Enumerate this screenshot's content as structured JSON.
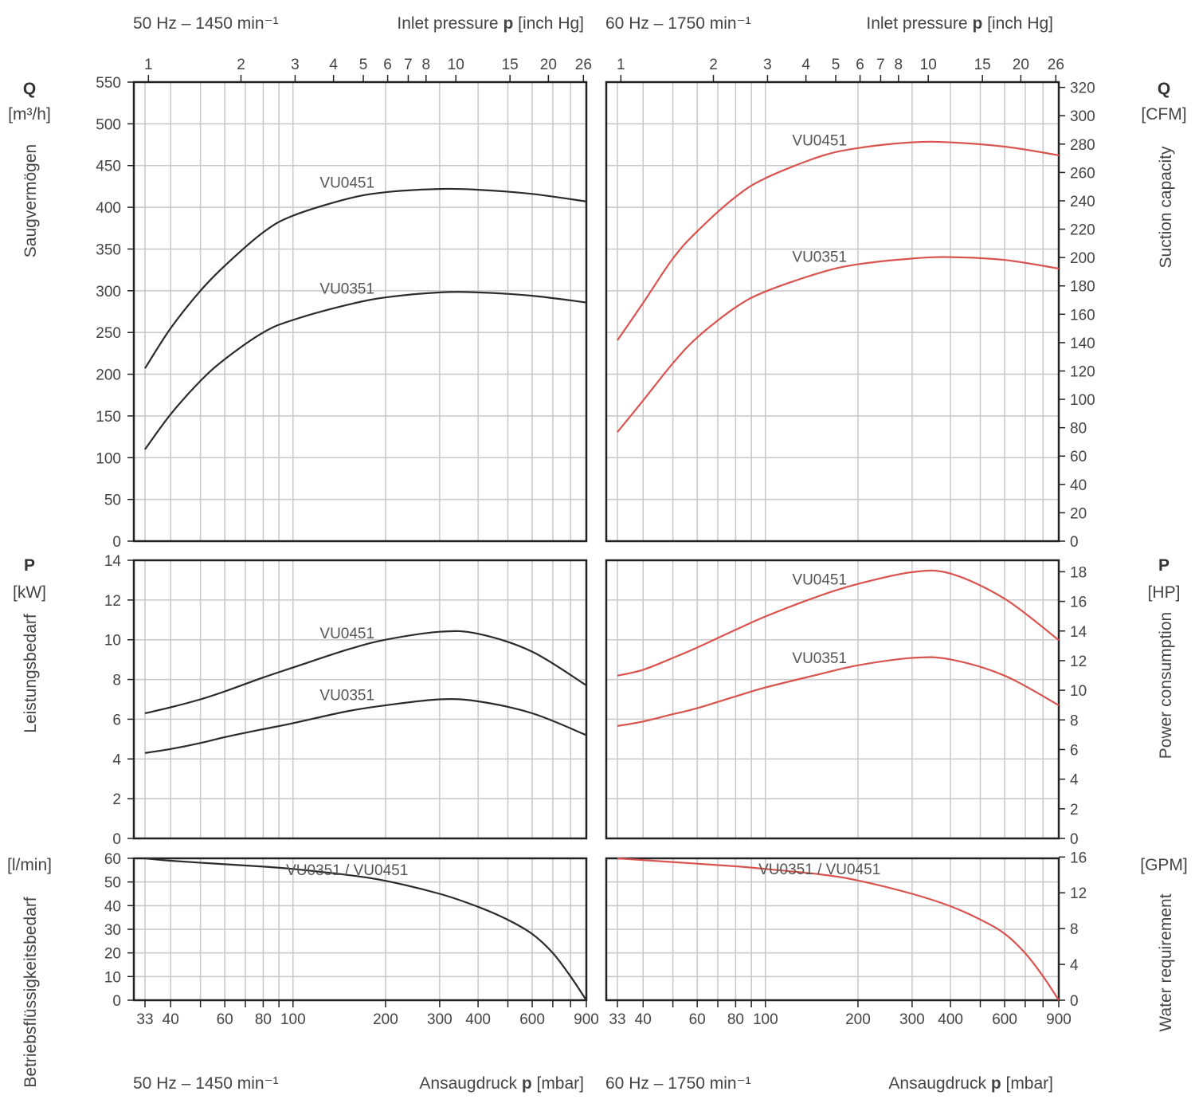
{
  "headers": {
    "top_left_speed": "50 Hz – 1450 min⁻¹",
    "top_left_axis": "Inlet pressure",
    "top_right_speed": "60 Hz – 1750 min⁻¹",
    "top_right_axis": "Inlet pressure",
    "pressure_symbol": "p",
    "inlet_unit": "[inch Hg]",
    "bottom_left_speed": "50 Hz – 1450 min⁻¹",
    "bottom_left_axis": "Ansaugdruck",
    "bottom_right_speed": "60 Hz – 1750 min⁻¹",
    "bottom_right_axis": "Ansaugdruck",
    "mbar_unit": "[mbar]"
  },
  "side_labels": {
    "q_symbol": "Q",
    "q_unit_left": "[m³/h]",
    "q_label_left": "Saugvermögen",
    "q_unit_right": "[CFM]",
    "q_label_right": "Suction capacity",
    "p_symbol": "P",
    "p_unit_left": "[kW]",
    "p_label_left": "Leistungsbedarf",
    "p_unit_right": "[HP]",
    "p_label_right": "Power consumption",
    "w_unit_left": "[l/min]",
    "w_label_left": "Betriebsflüssigkeitsbedarf",
    "w_unit_right": "[GPM]",
    "w_label_right": "Water requirement"
  },
  "colors": {
    "hz50": "#2b2b2b",
    "hz60": "#d9534f"
  },
  "axes": {
    "mbar_ticks": [
      33,
      40,
      60,
      80,
      100,
      200,
      300,
      400,
      600,
      900
    ],
    "mbar_minor": [
      50,
      70,
      90,
      500,
      700,
      800
    ],
    "inchhg_ticks": [
      1,
      2,
      3,
      4,
      5,
      6,
      7,
      8,
      10,
      15,
      20,
      26
    ],
    "mbar_range": [
      33,
      900
    ],
    "q_left_ticks": [
      0,
      50,
      100,
      150,
      200,
      250,
      300,
      350,
      400,
      450,
      500,
      550
    ],
    "q_left_range": [
      0,
      550
    ],
    "q_right_ticks": [
      0,
      20,
      40,
      60,
      80,
      100,
      120,
      140,
      160,
      180,
      200,
      220,
      240,
      260,
      280,
      300,
      320
    ],
    "p_left_ticks": [
      0,
      2,
      4,
      6,
      8,
      10,
      12,
      14
    ],
    "p_left_range": [
      0,
      14
    ],
    "p_right_ticks": [
      0,
      2,
      4,
      6,
      8,
      10,
      12,
      14,
      16,
      18
    ],
    "w_left_ticks": [
      0,
      10,
      20,
      30,
      40,
      50,
      60
    ],
    "w_left_range": [
      0,
      60
    ],
    "w_right_ticks": [
      0,
      4,
      8,
      12,
      16
    ]
  },
  "chart_data": [
    {
      "type": "line",
      "title": "50 Hz – 1450 min⁻¹",
      "xlabel": "Ansaugdruck p [mbar]",
      "ylabel": "Saugvermögen Q [m³/h]",
      "xscale": "log",
      "xlim": [
        33,
        900
      ],
      "ylim": [
        0,
        550
      ],
      "series": [
        {
          "name": "VU0451",
          "x": [
            33,
            40,
            50,
            60,
            80,
            100,
            150,
            200,
            300,
            400,
            600,
            900
          ],
          "y": [
            207,
            255,
            300,
            330,
            370,
            390,
            410,
            418,
            422,
            421,
            416,
            407
          ]
        },
        {
          "name": "VU0351",
          "x": [
            33,
            40,
            50,
            60,
            80,
            100,
            150,
            200,
            300,
            400,
            600,
            900
          ],
          "y": [
            110,
            152,
            192,
            218,
            250,
            265,
            283,
            292,
            298,
            298,
            294,
            286
          ]
        }
      ]
    },
    {
      "type": "line",
      "title": "60 Hz – 1750 min⁻¹",
      "xlabel": "Ansaugdruck p [mbar]",
      "ylabel": "Suction capacity Q [CFM]",
      "xscale": "log",
      "xlim": [
        33,
        900
      ],
      "ylim": [
        0,
        320
      ],
      "series": [
        {
          "name": "VU0451",
          "x": [
            33,
            40,
            50,
            60,
            80,
            100,
            150,
            200,
            300,
            400,
            600,
            900
          ],
          "y": [
            140,
            166,
            197,
            216,
            240,
            253,
            268,
            274,
            278,
            278,
            275,
            269
          ]
        },
        {
          "name": "VU0351",
          "x": [
            33,
            40,
            50,
            60,
            80,
            100,
            150,
            200,
            300,
            400,
            600,
            900
          ],
          "y": [
            76,
            98,
            124,
            142,
            163,
            174,
            187,
            193,
            197,
            198,
            196,
            190
          ]
        }
      ]
    },
    {
      "type": "line",
      "title": "50 Hz – 1450 min⁻¹",
      "ylabel": "Leistungsbedarf P [kW]",
      "xscale": "log",
      "xlim": [
        33,
        900
      ],
      "ylim": [
        0,
        14
      ],
      "series": [
        {
          "name": "VU0451",
          "x": [
            33,
            40,
            50,
            60,
            80,
            100,
            150,
            200,
            300,
            400,
            600,
            900
          ],
          "y": [
            6.3,
            6.6,
            7.0,
            7.4,
            8.1,
            8.6,
            9.5,
            10.0,
            10.4,
            10.3,
            9.4,
            7.7
          ]
        },
        {
          "name": "VU0351",
          "x": [
            33,
            40,
            50,
            60,
            80,
            100,
            150,
            200,
            300,
            400,
            600,
            900
          ],
          "y": [
            4.3,
            4.5,
            4.8,
            5.1,
            5.5,
            5.8,
            6.4,
            6.7,
            7.0,
            6.9,
            6.3,
            5.2
          ]
        }
      ]
    },
    {
      "type": "line",
      "title": "60 Hz – 1750 min⁻¹",
      "ylabel": "Power consumption P [HP]",
      "xscale": "log",
      "xlim": [
        33,
        900
      ],
      "ylim": [
        0,
        18.8
      ],
      "series": [
        {
          "name": "VU0451",
          "x": [
            33,
            40,
            50,
            60,
            80,
            100,
            150,
            200,
            300,
            400,
            600,
            900
          ],
          "y": [
            11.0,
            11.4,
            12.2,
            12.9,
            14.1,
            15.0,
            16.4,
            17.2,
            18.0,
            17.9,
            16.2,
            13.4
          ]
        },
        {
          "name": "VU0351",
          "x": [
            33,
            40,
            50,
            60,
            80,
            100,
            150,
            200,
            300,
            400,
            600,
            900
          ],
          "y": [
            7.6,
            7.9,
            8.4,
            8.8,
            9.6,
            10.2,
            11.1,
            11.7,
            12.2,
            12.1,
            11.0,
            9.0
          ]
        }
      ]
    },
    {
      "type": "line",
      "title": "50 Hz – 1450 min⁻¹",
      "ylabel": "Betriebsflüssigkeitsbedarf [l/min]",
      "xlabel": "Ansaugdruck p [mbar]",
      "xscale": "log",
      "xlim": [
        33,
        900
      ],
      "ylim": [
        0,
        60
      ],
      "series": [
        {
          "name": "VU0351 / VU0451",
          "x": [
            33,
            40,
            60,
            80,
            100,
            150,
            200,
            300,
            400,
            500,
            600,
            700,
            800,
            900
          ],
          "y": [
            60,
            59,
            57.5,
            56.5,
            55.5,
            53,
            50.5,
            45,
            39.5,
            34,
            28,
            20,
            10,
            0
          ]
        }
      ]
    },
    {
      "type": "line",
      "title": "60 Hz – 1750 min⁻¹",
      "ylabel": "Water requirement [GPM]",
      "xlabel": "Ansaugdruck p [mbar]",
      "xscale": "log",
      "xlim": [
        33,
        900
      ],
      "ylim": [
        0,
        16
      ],
      "series": [
        {
          "name": "VU0351 / VU0451",
          "x": [
            33,
            40,
            60,
            80,
            100,
            150,
            200,
            300,
            400,
            500,
            600,
            700,
            800,
            900
          ],
          "y": [
            16,
            15.8,
            15.4,
            15.1,
            14.8,
            14.2,
            13.5,
            12.0,
            10.6,
            9.1,
            7.5,
            5.3,
            2.7,
            0
          ]
        }
      ]
    }
  ]
}
